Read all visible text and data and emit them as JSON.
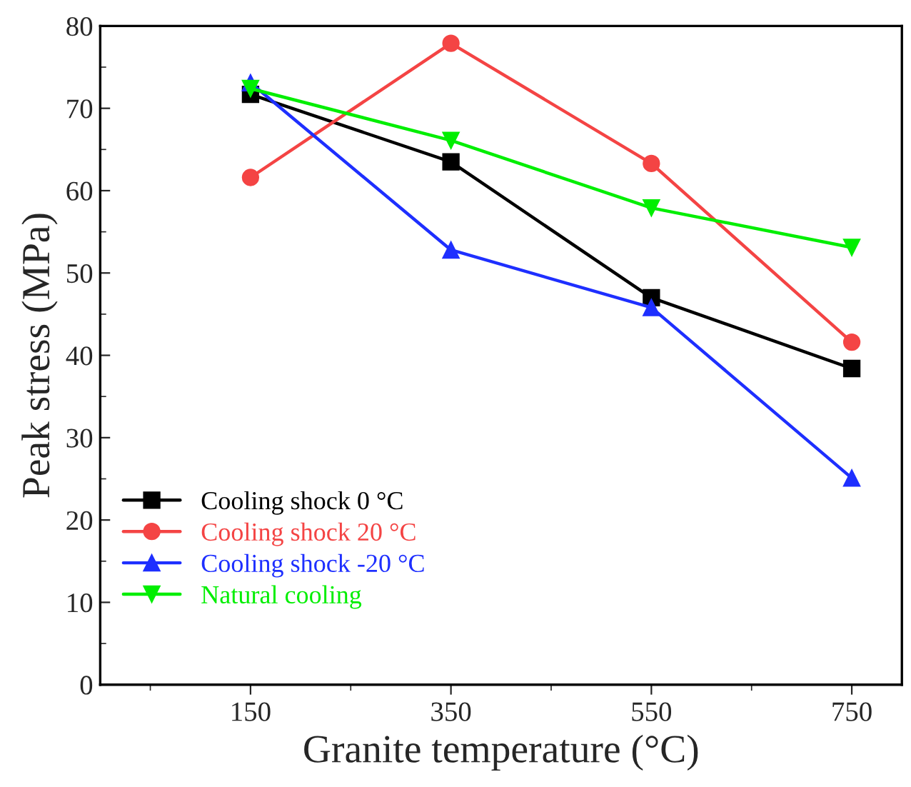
{
  "chart_data": {
    "type": "line",
    "xlabel": "Granite temperature (°C)",
    "ylabel": "Peak stress (MPa)",
    "x": [
      150,
      350,
      550,
      750
    ],
    "series": [
      {
        "name": "Cooling shock 0 °C",
        "color": "#000000",
        "marker": "square",
        "values": [
          71.7,
          63.5,
          47.0,
          38.4
        ]
      },
      {
        "name": "Cooling shock 20 °C",
        "color": "#f44444",
        "marker": "circle",
        "values": [
          61.6,
          77.9,
          63.3,
          41.6
        ]
      },
      {
        "name": "Cooling shock -20 °C",
        "color": "#1e2fff",
        "marker": "triangle",
        "values": [
          73.1,
          52.8,
          45.8,
          25.1
        ]
      },
      {
        "name": "Natural cooling",
        "color": "#00ee00",
        "marker": "triangle_down",
        "values": [
          72.4,
          66.1,
          57.9,
          53.1
        ]
      }
    ],
    "xlim": [
      0,
      800
    ],
    "xticks": [
      150,
      350,
      550,
      750
    ],
    "ylim": [
      0,
      80
    ],
    "yticks": [
      0,
      10,
      20,
      30,
      40,
      50,
      60,
      70,
      80
    ],
    "grid": false,
    "legend": "bottom left",
    "line_style": "solid"
  }
}
